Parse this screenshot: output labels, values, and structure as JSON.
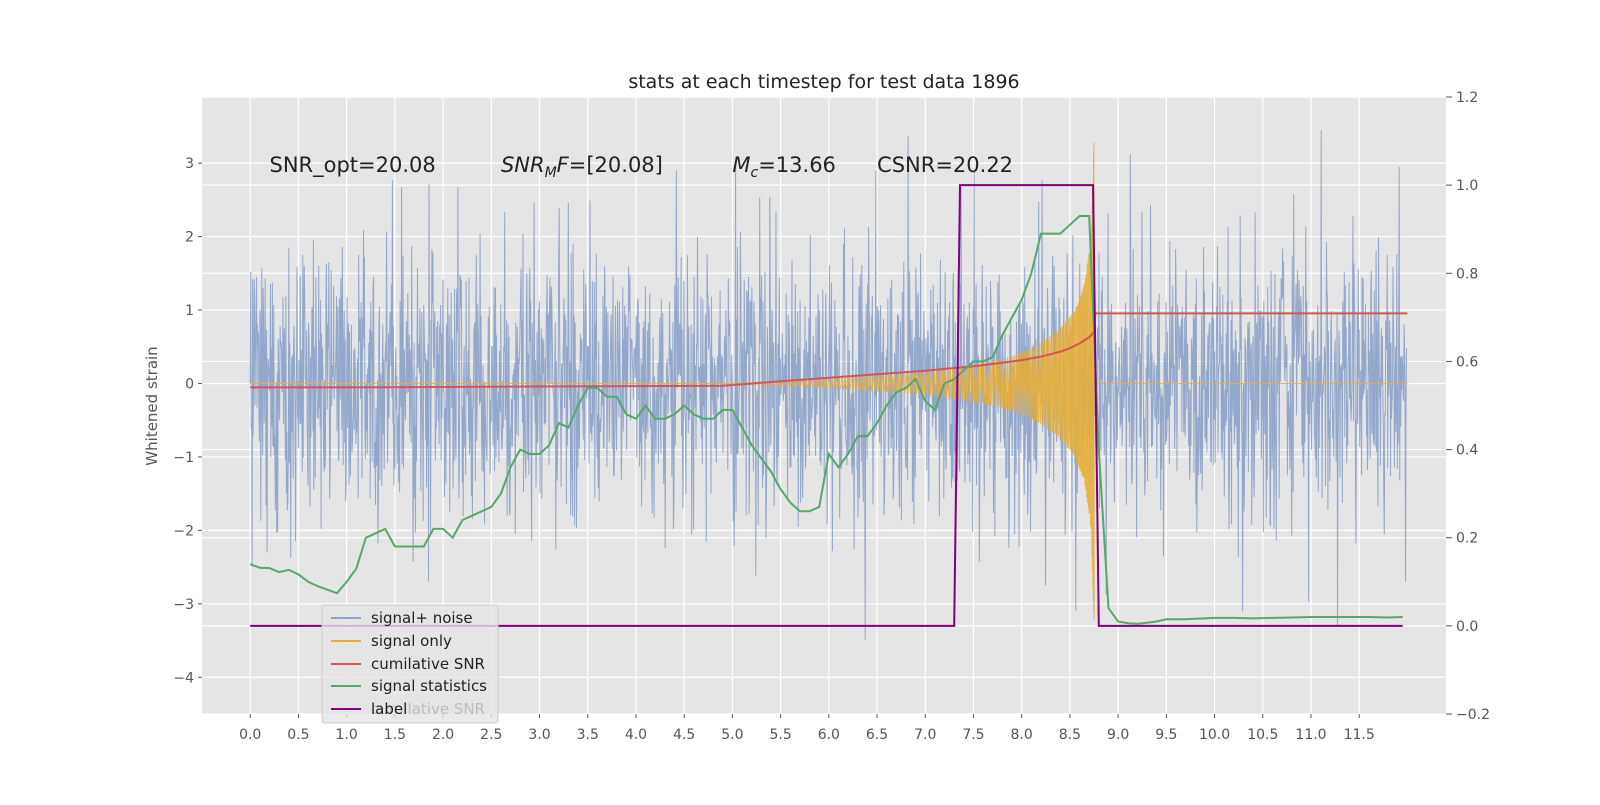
{
  "chart_data": {
    "type": "line",
    "title": "stats at each timestep for test data 1896",
    "xlabel": "",
    "ylabel": "Whitened strain",
    "xlim": [
      -0.5,
      12.4
    ],
    "ylim": [
      -4.5,
      3.9
    ],
    "y2lim": [
      -0.2,
      1.2
    ],
    "x_ticks": [
      0.0,
      0.5,
      1.0,
      1.5,
      2.0,
      2.5,
      3.0,
      3.5,
      4.0,
      4.5,
      5.0,
      5.5,
      6.0,
      6.5,
      7.0,
      7.5,
      8.0,
      8.5,
      9.0,
      9.5,
      10.0,
      10.5,
      11.0,
      11.5
    ],
    "x_tick_labels": [
      "0.0",
      "0.5",
      "1.0",
      "1.5",
      "2.0",
      "2.5",
      "3.0",
      "3.5",
      "4.0",
      "4.5",
      "5.0",
      "5.5",
      "6.0",
      "6.5",
      "7.0",
      "7.5",
      "8.0",
      "8.5",
      "9.0",
      "9.5",
      "10.0",
      "10.5",
      "11.0",
      "11.5"
    ],
    "y_ticks": [
      3,
      2,
      1,
      0,
      -1,
      -2,
      -3,
      -4
    ],
    "y_tick_labels": [
      "3",
      "2",
      "1",
      "0",
      "−1",
      "−2",
      "−3",
      "−4"
    ],
    "y2_ticks": [
      1.2,
      1.0,
      0.8,
      0.6,
      0.4,
      0.2,
      0.0,
      -0.2
    ],
    "y2_tick_labels": [
      "1.2",
      "1.0",
      "0.8",
      "0.6",
      "0.4",
      "0.2",
      "0.0",
      "−0.2"
    ],
    "grid": true,
    "legend_position": "lower-left",
    "annotations": [
      {
        "segments": [
          {
            "text": "SNR_opt=20.08"
          }
        ],
        "x": 0.2,
        "y": 2.88
      },
      {
        "segments": [
          {
            "text": "SNR",
            "italic": true
          },
          {
            "text": "M",
            "italic": true,
            "sub": true
          },
          {
            "text": "F",
            "italic": true
          },
          {
            "text": "=[20.08]"
          }
        ],
        "x": 2.6,
        "y": 2.88
      },
      {
        "segments": [
          {
            "text": "M",
            "italic": true
          },
          {
            "text": "c",
            "italic": true,
            "sub": true
          },
          {
            "text": "=13.66"
          }
        ],
        "x": 5.0,
        "y": 2.88
      },
      {
        "segments": [
          {
            "text": "CSNR=20.22"
          }
        ],
        "x": 6.5,
        "y": 2.88
      }
    ],
    "legend": {
      "entries": [
        "signal+ noise",
        "signal only",
        "cumilative SNR",
        "signal statistics",
        "label"
      ],
      "ghost_text": "cumilative SNR"
    },
    "series": [
      {
        "name": "signal+ noise",
        "axis": "left",
        "color": "#8ea3c9",
        "description": "whitened noise, amplitude envelope ~±1.5 with spikes to about +3.5 and -4.1",
        "t_start": 0.0,
        "t_end": 11.99,
        "envelope_upper": 1.5,
        "envelope_lower": -1.5,
        "peak_max": 3.5,
        "peak_min": -4.1
      },
      {
        "name": "signal only",
        "axis": "left",
        "color": "#e5ae38",
        "chirp_start": 4.9,
        "merger_time": 8.75,
        "envelope": [
          [
            4.9,
            0.0
          ],
          [
            5.5,
            0.03
          ],
          [
            6.0,
            0.06
          ],
          [
            6.5,
            0.1
          ],
          [
            7.0,
            0.15
          ],
          [
            7.5,
            0.25
          ],
          [
            7.8,
            0.33
          ],
          [
            8.0,
            0.42
          ],
          [
            8.2,
            0.55
          ],
          [
            8.4,
            0.75
          ],
          [
            8.55,
            1.0
          ],
          [
            8.65,
            1.35
          ],
          [
            8.72,
            2.0
          ],
          [
            8.75,
            3.4
          ],
          [
            8.78,
            0.0
          ]
        ]
      },
      {
        "name": "cumilative SNR",
        "axis": "right",
        "color": "#d9534f",
        "x": [
          0.0,
          1.0,
          2.0,
          3.0,
          4.0,
          4.9,
          5.5,
          6.0,
          6.5,
          7.0,
          7.5,
          7.8,
          8.0,
          8.2,
          8.4,
          8.5,
          8.6,
          8.7,
          8.75,
          8.76,
          12.0
        ],
        "values": [
          0.541,
          0.541,
          0.542,
          0.543,
          0.544,
          0.545,
          0.555,
          0.563,
          0.571,
          0.579,
          0.589,
          0.597,
          0.603,
          0.611,
          0.622,
          0.63,
          0.641,
          0.655,
          0.667,
          0.709,
          0.709
        ]
      },
      {
        "name": "signal statistics",
        "axis": "right",
        "color": "#55a868",
        "x": [
          0.0,
          0.1,
          0.2,
          0.3,
          0.4,
          0.5,
          0.6,
          0.7,
          0.8,
          0.9,
          1.0,
          1.1,
          1.2,
          1.3,
          1.4,
          1.5,
          1.6,
          1.7,
          1.8,
          1.9,
          2.0,
          2.1,
          2.2,
          2.3,
          2.4,
          2.5,
          2.6,
          2.7,
          2.8,
          2.9,
          3.0,
          3.1,
          3.2,
          3.3,
          3.4,
          3.5,
          3.6,
          3.7,
          3.8,
          3.9,
          4.0,
          4.1,
          4.2,
          4.3,
          4.4,
          4.5,
          4.6,
          4.7,
          4.8,
          4.9,
          5.0,
          5.1,
          5.2,
          5.3,
          5.4,
          5.5,
          5.6,
          5.7,
          5.8,
          5.9,
          6.0,
          6.1,
          6.2,
          6.3,
          6.4,
          6.5,
          6.6,
          6.7,
          6.8,
          6.9,
          7.0,
          7.1,
          7.2,
          7.3,
          7.4,
          7.5,
          7.6,
          7.7,
          7.8,
          7.9,
          8.0,
          8.1,
          8.2,
          8.3,
          8.4,
          8.5,
          8.6,
          8.7,
          8.8,
          8.9,
          9.0,
          9.1,
          9.2,
          9.3,
          9.4,
          9.5,
          9.6,
          9.7,
          9.8,
          9.9,
          10.0,
          10.2,
          10.4,
          10.6,
          10.8,
          11.0,
          11.2,
          11.4,
          11.6,
          11.8,
          11.95
        ],
        "values": [
          0.14,
          0.132,
          0.131,
          0.122,
          0.127,
          0.117,
          0.1,
          0.09,
          0.082,
          0.074,
          0.1,
          0.13,
          0.2,
          0.21,
          0.22,
          0.18,
          0.18,
          0.18,
          0.18,
          0.22,
          0.22,
          0.2,
          0.24,
          0.25,
          0.26,
          0.27,
          0.3,
          0.36,
          0.4,
          0.39,
          0.39,
          0.41,
          0.46,
          0.45,
          0.5,
          0.54,
          0.54,
          0.52,
          0.52,
          0.48,
          0.47,
          0.5,
          0.47,
          0.47,
          0.48,
          0.5,
          0.48,
          0.47,
          0.47,
          0.49,
          0.49,
          0.45,
          0.41,
          0.38,
          0.35,
          0.31,
          0.28,
          0.26,
          0.26,
          0.27,
          0.39,
          0.36,
          0.39,
          0.43,
          0.43,
          0.46,
          0.5,
          0.53,
          0.54,
          0.56,
          0.51,
          0.49,
          0.55,
          0.56,
          0.58,
          0.6,
          0.6,
          0.61,
          0.66,
          0.7,
          0.74,
          0.8,
          0.89,
          0.89,
          0.89,
          0.91,
          0.93,
          0.93,
          0.4,
          0.04,
          0.01,
          0.006,
          0.005,
          0.007,
          0.01,
          0.015,
          0.015,
          0.015,
          0.016,
          0.017,
          0.018,
          0.018,
          0.017,
          0.018,
          0.019,
          0.02,
          0.02,
          0.02,
          0.02,
          0.019,
          0.02
        ]
      },
      {
        "name": "label",
        "axis": "right",
        "color": "#800080",
        "x": [
          0.0,
          7.3,
          7.36,
          8.74,
          8.8,
          11.95
        ],
        "values": [
          0.0,
          0.0,
          1.0,
          1.0,
          0.0,
          0.0
        ]
      }
    ]
  }
}
